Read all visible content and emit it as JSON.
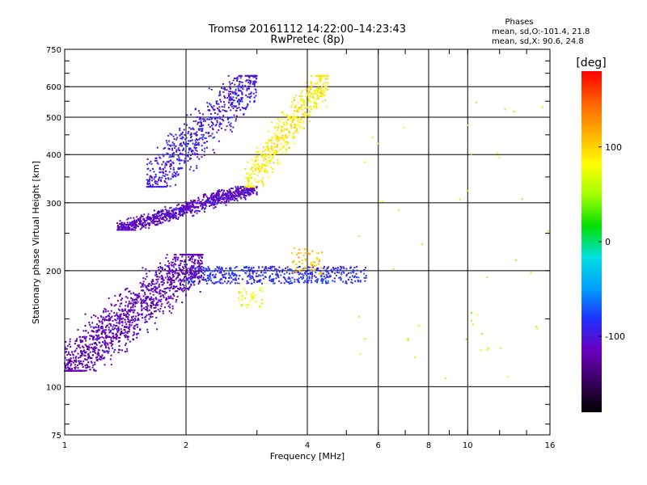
{
  "chart_data": {
    "type": "scatter",
    "title_line1": "Tromsø 20161112 14:22:00–14:23:43",
    "title_line2": "RwPretec (8p)",
    "stats": {
      "heading": "Phases",
      "line_o": "mean, sd,O:-101.4, 21.8",
      "line_x": "mean, sd,X:  90.6, 24.8"
    },
    "xlabel": "Frequency [MHz]",
    "ylabel": "Stationary phase Virtual Height [km]",
    "x_scale": "log",
    "y_scale": "log",
    "xlim": [
      1,
      16
    ],
    "ylim": [
      75,
      750
    ],
    "x_ticks": [
      1,
      2,
      4,
      6,
      8,
      10,
      16
    ],
    "y_ticks": [
      75,
      100,
      200,
      300,
      400,
      500,
      600,
      750
    ],
    "x_grid": [
      2,
      4,
      6,
      8,
      10
    ],
    "y_grid": [
      100,
      200,
      300,
      400,
      500,
      600
    ],
    "colorbar": {
      "label": "[deg]",
      "range": [
        -180,
        180
      ],
      "ticks": [
        -100,
        0,
        100
      ],
      "colors": [
        "#000000",
        "#3a0060",
        "#6a00c0",
        "#2030ff",
        "#00a0ff",
        "#00e0e0",
        "#00e000",
        "#a0ff00",
        "#ffff00",
        "#ffb000",
        "#ff6000",
        "#ff0000"
      ]
    },
    "clusters": [
      {
        "name": "upper O trace",
        "x_range": [
          1.35,
          3.0
        ],
        "y_range": [
          255,
          330
        ],
        "phase": -110,
        "n": 900,
        "trend": "up",
        "spread": 0.25
      },
      {
        "name": "upper O spread",
        "x_range": [
          1.6,
          3.0
        ],
        "y_range": [
          330,
          640
        ],
        "phase": -95,
        "n": 700,
        "trend": "up",
        "spread": 0.35
      },
      {
        "name": "upper X trace",
        "x_range": [
          2.8,
          4.5
        ],
        "y_range": [
          330,
          640
        ],
        "phase": 90,
        "n": 500,
        "trend": "up",
        "spread": 0.3
      },
      {
        "name": "lower O trace",
        "x_range": [
          2.0,
          5.6
        ],
        "y_range": [
          185,
          205
        ],
        "phase": -85,
        "n": 500,
        "trend": "flat",
        "spread": 0.05
      },
      {
        "name": "lower O band",
        "x_range": [
          1.0,
          2.2
        ],
        "y_range": [
          110,
          220
        ],
        "phase": -115,
        "n": 1300,
        "trend": "up",
        "spread": 0.35
      },
      {
        "name": "lower X patch",
        "x_range": [
          2.7,
          3.1
        ],
        "y_range": [
          160,
          185
        ],
        "phase": 80,
        "n": 40,
        "trend": "flat",
        "spread": 0.2
      },
      {
        "name": "lower X trace",
        "x_range": [
          3.6,
          4.4
        ],
        "y_range": [
          195,
          230
        ],
        "phase": 110,
        "n": 60,
        "trend": "flat",
        "spread": 0.2
      },
      {
        "name": "sparse high freq",
        "x_range": [
          5.0,
          16.0
        ],
        "y_range": [
          100,
          600
        ],
        "phase": 60,
        "n": 45,
        "trend": "flat",
        "spread": 1.0
      }
    ]
  }
}
